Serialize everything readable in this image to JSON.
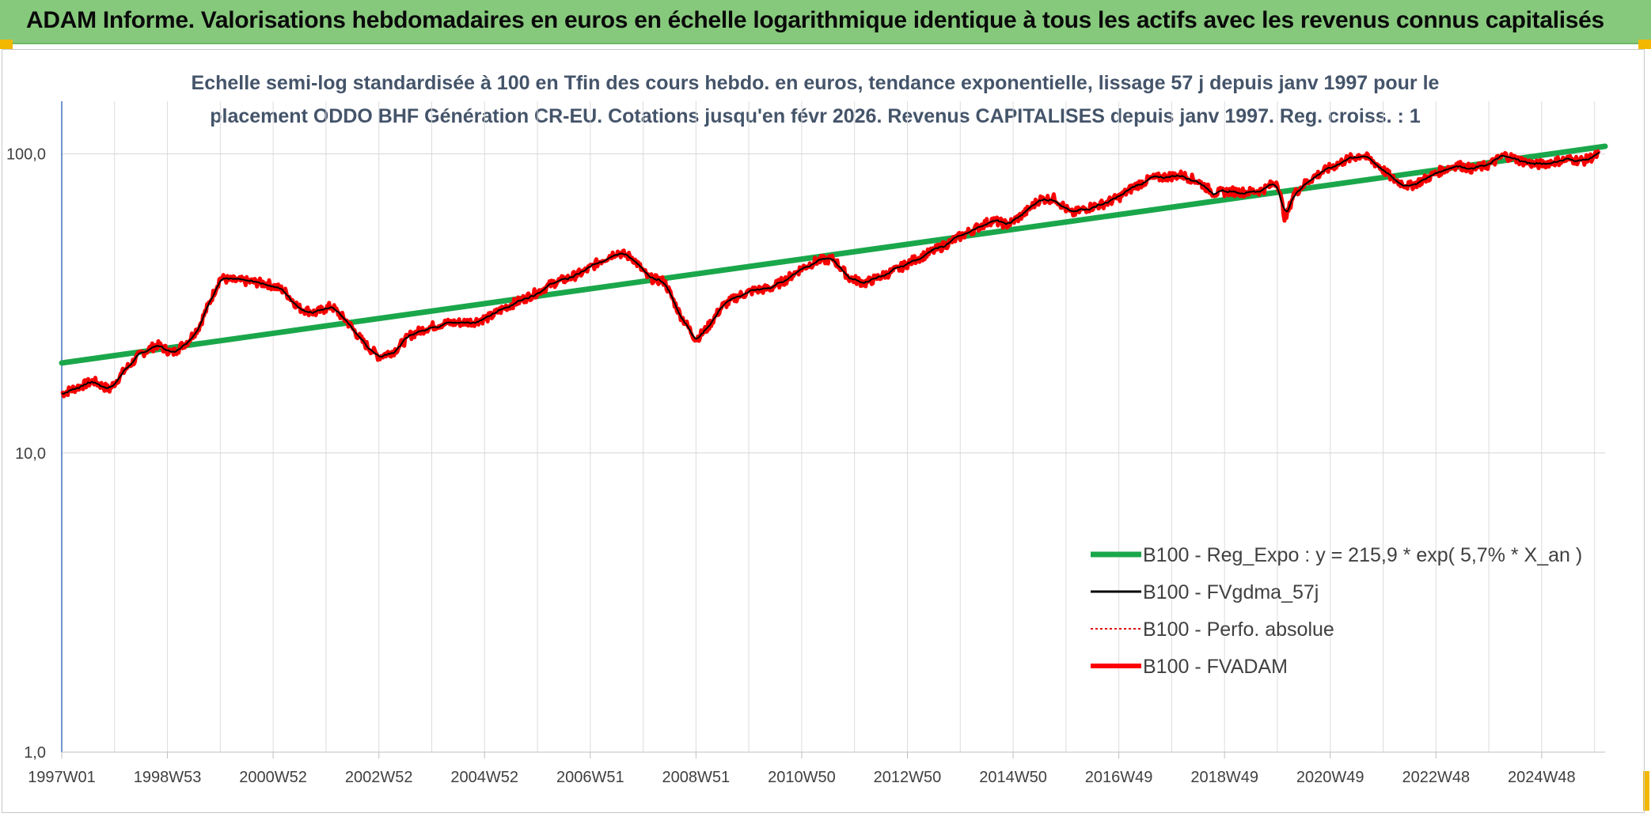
{
  "header": {
    "title": "ADAM Informe. Valorisations hebdomadaires en euros en échelle logarithmique identique à tous les actifs avec les revenus connus capitalisés"
  },
  "colors": {
    "banner": "#86c97c",
    "reg_expo": "#1aa74b",
    "fvgdma": "#000000",
    "perfo": "#e00000",
    "fvadam": "#ff0000",
    "corner": "#f2b800"
  },
  "chart_data": {
    "type": "line",
    "title_lines": [
      "Echelle semi-log standardisée à 100 en Tfin des cours hebdo. en euros, tendance exponentielle, lissage 57 j depuis janv 1997 pour le",
      "placement ODDO BHF Génération CR-EU. Cotations jusqu'en févr 2026. Revenus CAPITALISES depuis janv 1997. Reg. croiss. : 1"
    ],
    "y_scale": "log",
    "ylim": [
      1,
      150
    ],
    "y_ticks": [
      {
        "value": 1,
        "label": "1,0"
      },
      {
        "value": 10,
        "label": "10,0"
      },
      {
        "value": 100,
        "label": "100,0"
      }
    ],
    "x_range": [
      1997.0,
      2026.2
    ],
    "x_ticks": [
      {
        "x": 1997.0,
        "label": "1997W01"
      },
      {
        "x": 1999.0,
        "label": "1998W53"
      },
      {
        "x": 2001.0,
        "label": "2000W52"
      },
      {
        "x": 2003.0,
        "label": "2002W52"
      },
      {
        "x": 2005.0,
        "label": "2004W52"
      },
      {
        "x": 2007.0,
        "label": "2006W51"
      },
      {
        "x": 2009.0,
        "label": "2008W51"
      },
      {
        "x": 2011.0,
        "label": "2010W50"
      },
      {
        "x": 2013.0,
        "label": "2012W50"
      },
      {
        "x": 2015.0,
        "label": "2014W50"
      },
      {
        "x": 2017.0,
        "label": "2016W49"
      },
      {
        "x": 2019.0,
        "label": "2018W49"
      },
      {
        "x": 2021.0,
        "label": "2020W49"
      },
      {
        "x": 2023.0,
        "label": "2022W48"
      },
      {
        "x": 2025.0,
        "label": "2024W48"
      }
    ],
    "grid": {
      "vertical": true,
      "horizontal": true
    },
    "legend_position": "bottom-right",
    "series": [
      {
        "name": "B100 - Reg_Expo : y = 215,9 * exp( 5,7% *  X_an )",
        "style": "thick-green",
        "x": [
          1997.0,
          2026.2
        ],
        "y": [
          20.0,
          106.0
        ]
      },
      {
        "name": "B100 - FVgdma_57j",
        "style": "thin-black",
        "points": "fvadam_smoothed"
      },
      {
        "name": "B100 - Perfo. absolue",
        "style": "dotted-red",
        "points": "fvadam"
      },
      {
        "name": "B100 - FVADAM",
        "style": "thick-red",
        "x": [
          1997.0,
          1997.3,
          1997.6,
          1997.9,
          1998.2,
          1998.5,
          1998.8,
          1999.1,
          1999.4,
          1999.6,
          1999.8,
          2000.0,
          2000.2,
          2000.5,
          2000.9,
          2001.2,
          2001.5,
          2001.8,
          2002.1,
          2002.4,
          2002.7,
          2003.0,
          2003.3,
          2003.6,
          2003.9,
          2004.2,
          2004.5,
          2004.8,
          2005.1,
          2005.4,
          2005.7,
          2006.0,
          2006.3,
          2006.6,
          2006.9,
          2007.2,
          2007.5,
          2007.8,
          2008.1,
          2008.4,
          2008.7,
          2009.0,
          2009.2,
          2009.5,
          2009.8,
          2010.1,
          2010.4,
          2010.7,
          2011.0,
          2011.3,
          2011.6,
          2011.9,
          2012.2,
          2012.5,
          2012.8,
          2013.1,
          2013.4,
          2013.7,
          2014.0,
          2014.3,
          2014.6,
          2014.9,
          2015.2,
          2015.5,
          2015.8,
          2016.1,
          2016.4,
          2016.7,
          2017.0,
          2017.3,
          2017.6,
          2017.9,
          2018.2,
          2018.5,
          2018.8,
          2019.1,
          2019.4,
          2019.7,
          2020.0,
          2020.15,
          2020.3,
          2020.5,
          2020.7,
          2021.0,
          2021.3,
          2021.6,
          2021.9,
          2022.2,
          2022.5,
          2022.8,
          2023.1,
          2023.4,
          2023.7,
          2024.0,
          2024.3,
          2024.6,
          2024.9,
          2025.2,
          2025.5,
          2025.8,
          2026.1
        ],
        "y": [
          15.8,
          16.6,
          17.4,
          16.3,
          19.0,
          21.5,
          23.0,
          21.6,
          23.8,
          26.5,
          32.0,
          38.5,
          37.8,
          37.5,
          36.8,
          35.0,
          30.5,
          29.4,
          31.0,
          27.5,
          23.5,
          21.0,
          22.0,
          24.8,
          26.2,
          27.1,
          27.3,
          27.5,
          28.5,
          30.8,
          32.5,
          34.5,
          37.0,
          38.5,
          40.5,
          44.0,
          47.0,
          45.0,
          38.5,
          37.5,
          29.0,
          24.0,
          26.0,
          31.0,
          33.5,
          35.0,
          35.5,
          38.0,
          41.5,
          44.0,
          44.5,
          38.5,
          37.0,
          39.0,
          41.0,
          44.0,
          46.5,
          49.5,
          53.0,
          56.5,
          60.0,
          58.0,
          63.0,
          70.5,
          71.0,
          63.0,
          66.0,
          68.0,
          71.5,
          78.0,
          82.5,
          84.0,
          85.0,
          81.0,
          74.0,
          75.0,
          74.5,
          75.5,
          81.0,
          60.0,
          73.0,
          79.0,
          84.0,
          90.0,
          95.5,
          99.5,
          92.0,
          82.0,
          78.0,
          82.5,
          88.0,
          92.0,
          89.0,
          92.0,
          99.0,
          95.0,
          92.0,
          94.0,
          96.0,
          95.0,
          100.0
        ]
      }
    ]
  }
}
